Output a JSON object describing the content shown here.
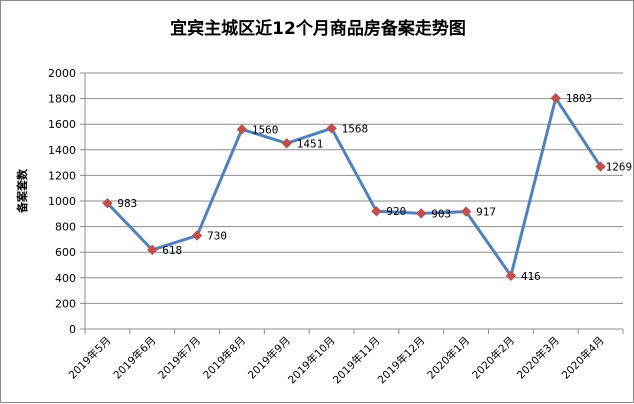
{
  "chart_data": {
    "type": "line",
    "title": "宜宾主城区近12个月商品房备案走势图",
    "ylabel": "备案套数",
    "xlabel": "",
    "categories": [
      "2019年5月",
      "2019年6月",
      "2019年7月",
      "2019年8月",
      "2019年9月",
      "2019年10月",
      "2019年11月",
      "2019年12月",
      "2020年1月",
      "2020年2月",
      "2020年3月",
      "2020年4月"
    ],
    "values": [
      983,
      618,
      730,
      1560,
      1451,
      1568,
      920,
      903,
      917,
      416,
      1803,
      1269
    ],
    "ylim": [
      0,
      2000
    ],
    "yticks": [
      0,
      200,
      400,
      600,
      800,
      1000,
      1200,
      1400,
      1600,
      1800,
      2000
    ],
    "grid": true,
    "legend": "none",
    "colors": {
      "line": "#4f81bd",
      "marker": "#c0504d",
      "grid": "#8c8c8c",
      "axis": "#8c8c8c"
    }
  }
}
